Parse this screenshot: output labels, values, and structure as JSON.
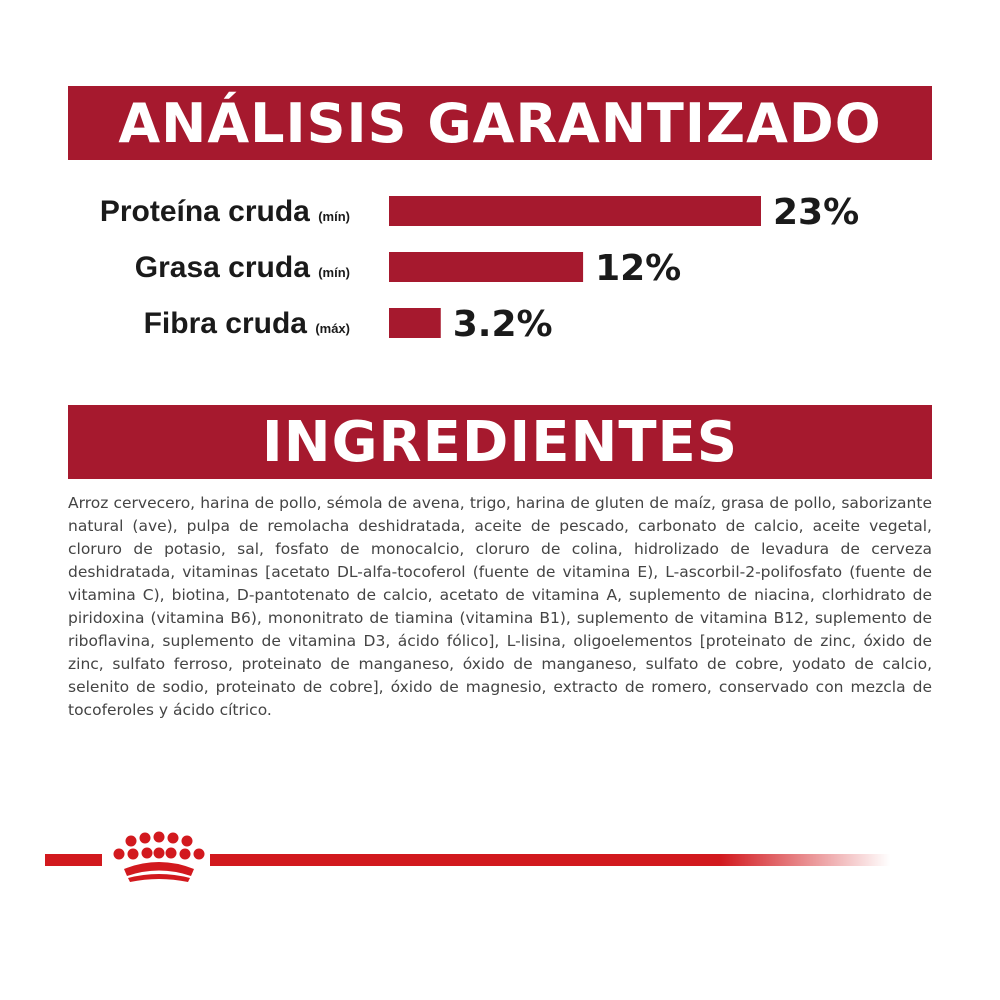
{
  "headings": {
    "analysis": "ANÁLISIS GARANTIZADO",
    "ingredients": "INGREDIENTES"
  },
  "chart_data": {
    "type": "bar",
    "orientation": "horizontal",
    "categories": [
      "Proteína cruda",
      "Grasa cruda",
      "Fibra cruda"
    ],
    "qualifiers": [
      "(mín)",
      "(mín)",
      "(máx)"
    ],
    "values": [
      23,
      12,
      3.2
    ],
    "value_labels": [
      "23%",
      "12%",
      "3.2%"
    ],
    "unit": "%",
    "xlim": [
      0,
      23
    ],
    "grid": false,
    "legend": "none",
    "bar_color": "#a6192e"
  },
  "ingredients_text": "Arroz cervecero, harina de pollo, sémola de avena, trigo, harina de gluten de maíz, grasa de pollo, saborizante natural (ave), pulpa de remolacha deshidratada, aceite de pescado, carbonato de calcio, aceite vegetal, cloruro de potasio, sal, fosfato de monocalcio, cloruro de colina, hidrolizado de levadura de cerveza deshidratada, vitaminas [acetato DL-alfa-tocoferol (fuente de vitamina E), L-ascorbil-2-polifosfato (fuente de vitamina C), biotina, D-pantotenato de calcio, acetato de vitamina A, suplemento de niacina, clorhidrato de piridoxina (vitamina B6), mononitrato de tiamina (vitamina B1), suplemento de vitamina B12, suplemento de riboflavina, suplemento de vitamina D3, ácido fólico], L-lisina, oligoelementos [proteinato de zinc, óxido de zinc, sulfato ferroso, proteinato de manganeso, óxido de manganeso, sulfato de cobre, yodato de calcio, selenito de sodio, proteinato de cobre], óxido de magnesio, extracto de romero, conservado con mezcla de tocoferoles y ácido cítrico.",
  "brand": {
    "accent": "#a6192e",
    "logo": "crown-icon"
  }
}
